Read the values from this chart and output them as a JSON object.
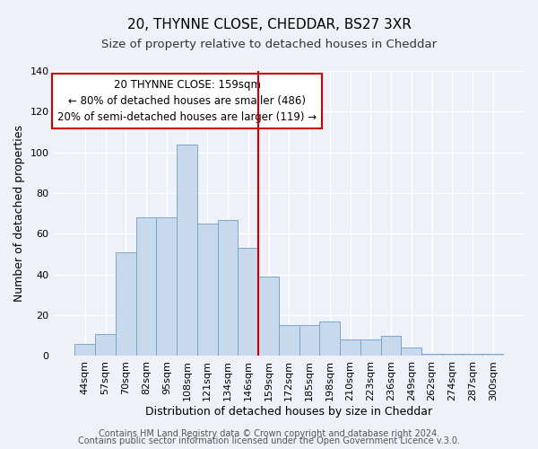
{
  "title": "20, THYNNE CLOSE, CHEDDAR, BS27 3XR",
  "subtitle": "Size of property relative to detached houses in Cheddar",
  "xlabel": "Distribution of detached houses by size in Cheddar",
  "ylabel": "Number of detached properties",
  "bar_labels": [
    "44sqm",
    "57sqm",
    "70sqm",
    "82sqm",
    "95sqm",
    "108sqm",
    "121sqm",
    "134sqm",
    "146sqm",
    "159sqm",
    "172sqm",
    "185sqm",
    "198sqm",
    "210sqm",
    "223sqm",
    "236sqm",
    "249sqm",
    "262sqm",
    "274sqm",
    "287sqm",
    "300sqm"
  ],
  "bar_values": [
    6,
    11,
    51,
    68,
    68,
    104,
    65,
    67,
    53,
    39,
    15,
    15,
    17,
    8,
    8,
    10,
    4,
    1,
    1,
    1,
    1
  ],
  "bar_color": "#c9d9ed",
  "bar_edge_color": "#7ba7cc",
  "vline_position": 8.5,
  "vline_color": "#cc0000",
  "ylim": [
    0,
    140
  ],
  "yticks": [
    0,
    20,
    40,
    60,
    80,
    100,
    120,
    140
  ],
  "annotation_title": "20 THYNNE CLOSE: 159sqm",
  "annotation_line1": "← 80% of detached houses are smaller (486)",
  "annotation_line2": "20% of semi-detached houses are larger (119) →",
  "annotation_box_color": "#ffffff",
  "annotation_box_edge_color": "#cc0000",
  "footer_line1": "Contains HM Land Registry data © Crown copyright and database right 2024.",
  "footer_line2": "Contains public sector information licensed under the Open Government Licence v.3.0.",
  "bg_color": "#eef2f8",
  "grid_color": "#ffffff",
  "title_fontsize": 11,
  "subtitle_fontsize": 9.5,
  "axis_label_fontsize": 9,
  "tick_fontsize": 8,
  "footer_fontsize": 7,
  "annotation_fontsize": 8.5
}
